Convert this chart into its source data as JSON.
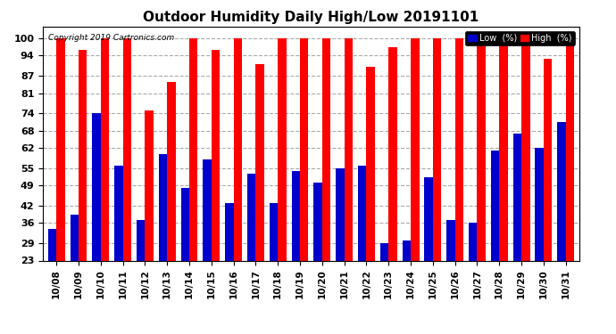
{
  "title": "Outdoor Humidity Daily High/Low 20191101",
  "copyright": "Copyright 2019 Cartronics.com",
  "dates": [
    "10/08",
    "10/09",
    "10/10",
    "10/11",
    "10/12",
    "10/13",
    "10/14",
    "10/15",
    "10/16",
    "10/17",
    "10/18",
    "10/19",
    "10/20",
    "10/21",
    "10/22",
    "10/23",
    "10/24",
    "10/25",
    "10/26",
    "10/27",
    "10/28",
    "10/29",
    "10/30",
    "10/31"
  ],
  "high": [
    100,
    96,
    100,
    100,
    75,
    85,
    100,
    96,
    100,
    91,
    100,
    100,
    100,
    100,
    90,
    97,
    100,
    100,
    100,
    100,
    100,
    100,
    93,
    100
  ],
  "low": [
    34,
    39,
    74,
    56,
    37,
    60,
    48,
    58,
    43,
    53,
    43,
    54,
    50,
    55,
    56,
    29,
    30,
    52,
    37,
    36,
    61,
    67,
    62,
    71
  ],
  "high_color": "#FF0000",
  "low_color": "#0000CC",
  "bg_color": "#FFFFFF",
  "plot_bg_color": "#FFFFFF",
  "grid_color": "#AAAAAA",
  "yticks": [
    23,
    29,
    36,
    42,
    49,
    55,
    62,
    68,
    74,
    81,
    87,
    94,
    100
  ],
  "ylim_min": 23,
  "ylim_max": 104,
  "title_fontsize": 11,
  "legend_low_label": "Low  (%)",
  "legend_high_label": "High  (%)"
}
